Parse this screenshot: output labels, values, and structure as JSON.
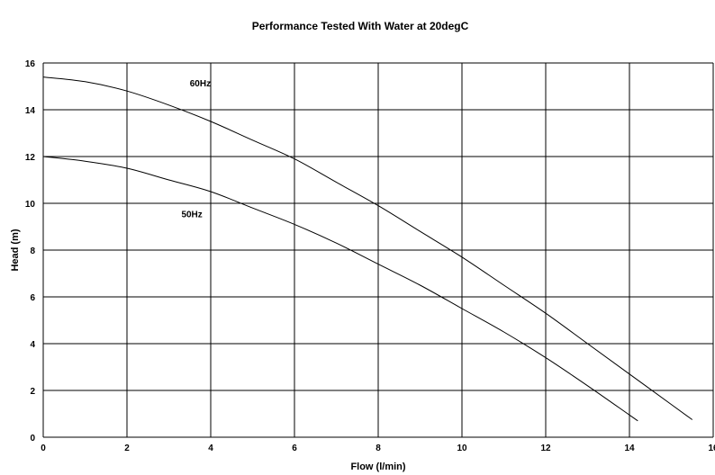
{
  "chart_data": {
    "type": "line",
    "title": "Performance Tested With Water at 20degC",
    "xlabel": "Flow (l/min)",
    "ylabel": "Head (m)",
    "xlim": [
      0,
      16
    ],
    "ylim": [
      0,
      16
    ],
    "x_ticks": [
      0,
      2,
      4,
      6,
      8,
      10,
      12,
      14,
      16
    ],
    "y_ticks": [
      0,
      2,
      4,
      6,
      8,
      10,
      12,
      14,
      16
    ],
    "grid": true,
    "series_labels": [
      {
        "text": "60Hz",
        "x": 3.5,
        "y": 15.0
      },
      {
        "text": "50Hz",
        "x": 3.3,
        "y": 9.4
      }
    ],
    "series": [
      {
        "name": "60Hz",
        "color": "#000000",
        "points": [
          [
            0,
            15.4
          ],
          [
            1,
            15.2
          ],
          [
            2,
            14.8
          ],
          [
            3,
            14.2
          ],
          [
            4,
            13.5
          ],
          [
            5,
            12.7
          ],
          [
            6,
            11.9
          ],
          [
            7,
            10.9
          ],
          [
            8,
            9.9
          ],
          [
            9,
            8.8
          ],
          [
            10,
            7.7
          ],
          [
            11,
            6.5
          ],
          [
            12,
            5.3
          ],
          [
            13,
            4.0
          ],
          [
            14,
            2.7
          ],
          [
            15,
            1.4
          ],
          [
            15.5,
            0.75
          ]
        ]
      },
      {
        "name": "50Hz",
        "color": "#000000",
        "points": [
          [
            0,
            12.0
          ],
          [
            1,
            11.8
          ],
          [
            2,
            11.5
          ],
          [
            3,
            11.0
          ],
          [
            4,
            10.5
          ],
          [
            5,
            9.8
          ],
          [
            6,
            9.1
          ],
          [
            7,
            8.3
          ],
          [
            8,
            7.4
          ],
          [
            9,
            6.5
          ],
          [
            10,
            5.5
          ],
          [
            11,
            4.5
          ],
          [
            12,
            3.4
          ],
          [
            13,
            2.2
          ],
          [
            14,
            0.95
          ],
          [
            14.2,
            0.7
          ]
        ]
      }
    ]
  }
}
